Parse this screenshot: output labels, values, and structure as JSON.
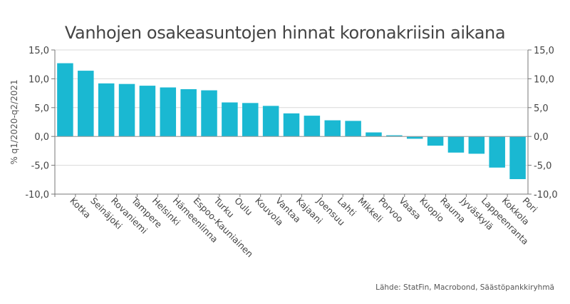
{
  "chart_data": {
    "type": "bar",
    "title": "Vanhojen osakeasuntojen hinnat koronakriisin aikana",
    "ylabel": "% q1/2020-q2/2021",
    "xlabel": "",
    "ylim": [
      -10,
      15
    ],
    "yticks": [
      "-10,0",
      "-5,0",
      "0,0",
      "5,0",
      "10,0",
      "15,0"
    ],
    "ytick_values": [
      -10,
      -5,
      0,
      5,
      10,
      15
    ],
    "right_axis": true,
    "grid": true,
    "categories": [
      "Kotka",
      "Seinäjoki",
      "Rovaniemi",
      "Tampere",
      "Helsinki",
      "Hämeenlinna",
      "Espoo-Kauniainen",
      "Turku",
      "Oulu",
      "Kouvola",
      "Vantaa",
      "Kajaani",
      "Joensuu",
      "Lahti",
      "Mikkeli",
      "Porvoo",
      "Vaasa",
      "Kuopio",
      "Rauma",
      "Jyväskylä",
      "Lappeenranta",
      "Kokkola",
      "Pori"
    ],
    "values": [
      12.7,
      11.4,
      9.2,
      9.1,
      8.8,
      8.5,
      8.2,
      8.0,
      5.9,
      5.8,
      5.3,
      4.0,
      3.6,
      2.8,
      2.7,
      0.7,
      0.2,
      -0.4,
      -1.6,
      -2.8,
      -3.0,
      -5.4,
      -7.4
    ],
    "bar_color": "#1ab8d2",
    "source": "Lähde: StatFin, Macrobond, Säästöpankkiryhmä"
  }
}
